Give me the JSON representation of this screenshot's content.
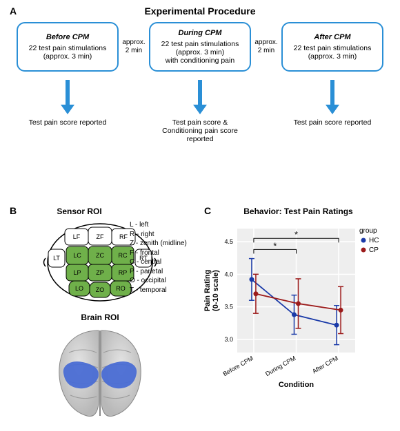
{
  "panelA": {
    "label": "A",
    "title": "Experimental Procedure",
    "boxes": [
      {
        "title": "Before CPM",
        "line1": "22 test pain stimulations",
        "line2": "(approx. 3 min)"
      },
      {
        "title": "During CPM",
        "line1": "22 test pain stimulations",
        "line2": "(approx. 3 min)",
        "line3": "with conditioning pain"
      },
      {
        "title": "After CPM",
        "line1": "22 test pain stimulations",
        "line2": "(approx. 3 min)"
      }
    ],
    "gap_label_line1": "approx.",
    "gap_label_line2": "2 min",
    "outcomes": [
      "Test pain score reported",
      "Test pain score &\nConditioning pain score reported",
      "Test pain score reported"
    ],
    "box_border_color": "#2a8fd6",
    "arrow_color": "#2a8fd6"
  },
  "panelB": {
    "label": "B",
    "sensor_title": "Sensor ROI",
    "brain_title": "Brain ROI",
    "legend": [
      "L - left",
      "R - right",
      "Z - zenith (midline)",
      "F - frontal",
      "C - central",
      "P - parietal",
      "O - occipital",
      "T - temporal"
    ],
    "sensor_regions": {
      "fill_green": "#6fb04a",
      "stroke": "#000000",
      "labels": [
        "LF",
        "ZF",
        "RF",
        "LT",
        "LC",
        "ZC",
        "RC",
        "RT",
        "LP",
        "ZP",
        "RP",
        "LO",
        "ZO",
        "RO"
      ]
    },
    "brain_colors": {
      "cortex": "#cfcfcf",
      "roi": "#4a6dd4",
      "sulci": "#9a9a9a"
    }
  },
  "panelC": {
    "label": "C",
    "title": "Behavior: Test Pain Ratings",
    "xlabel": "Condition",
    "ylabel": "Pain Rating\n(0-10 scale)",
    "xticks": [
      "Before CPM",
      "During CPM",
      "After CPM"
    ],
    "ylim": [
      2.8,
      4.7
    ],
    "yticks": [
      3.0,
      3.5,
      4.0,
      4.5
    ],
    "groups": {
      "HC": {
        "color": "#1a3aa8",
        "values": [
          3.92,
          3.38,
          3.22
        ],
        "err": [
          0.32,
          0.3,
          0.3
        ]
      },
      "CP": {
        "color": "#9c1b1b",
        "values": [
          3.7,
          3.55,
          3.45
        ],
        "err": [
          0.3,
          0.38,
          0.36
        ]
      }
    },
    "legend_title": "group",
    "sig_brackets": [
      {
        "from": 0,
        "to": 1,
        "y": 4.38,
        "label": "*"
      },
      {
        "from": 0,
        "to": 2,
        "y": 4.55,
        "label": "*"
      }
    ],
    "background": "#eeeeee",
    "grid_color": "#ffffff",
    "label_fontsize": 11,
    "tick_fontsize": 9
  }
}
